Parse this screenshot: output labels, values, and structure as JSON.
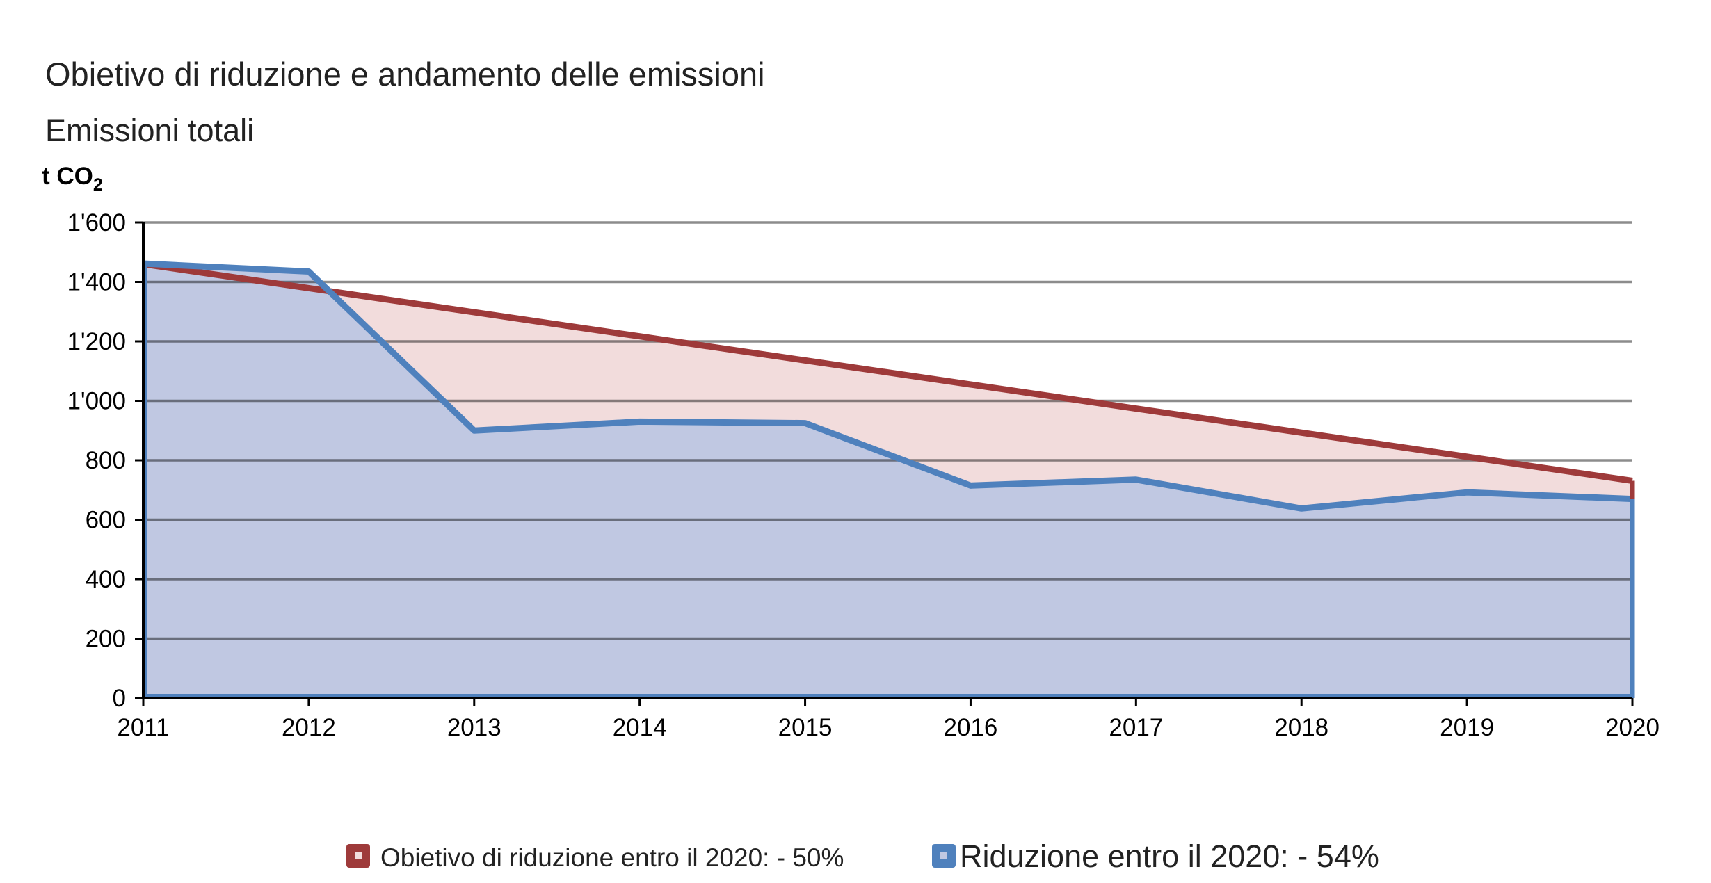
{
  "chart_data": {
    "type": "area",
    "title": "Obietivo di riduzione e andamento delle emissioni",
    "subtitle": "Emissioni totali",
    "ylabel_main": "t CO",
    "ylabel_sub": "2",
    "x": [
      2011,
      2012,
      2013,
      2014,
      2015,
      2016,
      2017,
      2018,
      2019,
      2020
    ],
    "x_tick_labels": [
      "2011",
      "2012",
      "2013",
      "2014",
      "2015",
      "2016",
      "2017",
      "2018",
      "2019",
      "2020"
    ],
    "ylim": [
      0,
      1600
    ],
    "y_ticks": [
      0,
      200,
      400,
      600,
      800,
      1000,
      1200,
      1400,
      1600
    ],
    "y_tick_labels": [
      "0",
      "200",
      "400",
      "600",
      "800",
      "1'000",
      "1'200",
      "1'400",
      "1'600"
    ],
    "grid": true,
    "legend_position": "bottom",
    "series": [
      {
        "name": "Obietivo di riduzione entro il 2020: - 50%",
        "color": "#9e3a3a",
        "fill": "#f2dcdc",
        "values": [
          1460,
          1379,
          1298,
          1217,
          1136,
          1055,
          974,
          893,
          812,
          731
        ]
      },
      {
        "name": "Riduzione entro il 2020: - 54%",
        "color": "#4f81bd",
        "fill": "#c0c8e2",
        "values": [
          1462,
          1435,
          900,
          930,
          925,
          715,
          735,
          638,
          692,
          670
        ]
      }
    ]
  }
}
